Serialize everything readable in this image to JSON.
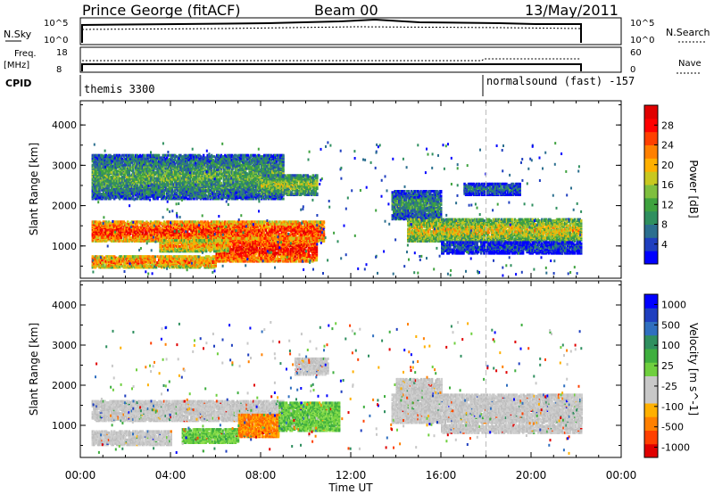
{
  "header": {
    "station": "Prince George (fitACF)",
    "beam": "Beam 00",
    "date": "13/May/2011"
  },
  "top_panels": {
    "nsky_label": "N.Sky",
    "nsky_ticks": [
      "10^5",
      "10^0"
    ],
    "nsearch_label": "N.Search",
    "nsearch_ticks": [
      "10^5",
      "10^0"
    ],
    "freq_label": "Freq.",
    "freq_unit": "[MHz]",
    "freq_ticks": [
      "18",
      "8"
    ],
    "nave_label": "Nave",
    "nave_ticks": [
      "60",
      "0"
    ],
    "cpid_label": "CPID",
    "cpid_modes": [
      {
        "name": "themis 3300",
        "start_hour": 0.0
      },
      {
        "name": "normalsound (fast) -157",
        "start_hour": 18.0
      }
    ]
  },
  "x_axis": {
    "label": "Time UT",
    "ticks": [
      "00:00",
      "04:00",
      "08:00",
      "12:00",
      "16:00",
      "20:00",
      "00:00"
    ],
    "range_hours": [
      0,
      24
    ]
  },
  "chart_data": [
    {
      "type": "heatmap",
      "panel": "power",
      "ylabel": "Slant Range [km]",
      "yticks": [
        "4000",
        "3000",
        "2000",
        "1000"
      ],
      "ylim": [
        200,
        4600
      ],
      "colorbar_label": "Power [dB]",
      "colorbar_ticks": [
        "28",
        "24",
        "20",
        "16",
        "12",
        "8",
        "4"
      ],
      "colorbar_colors": [
        "#0000ff",
        "#1f3fbf",
        "#2c6f8f",
        "#2f8f5f",
        "#3fa23f",
        "#7fbf3f",
        "#c8c820",
        "#ffb000",
        "#ff8000",
        "#ff4000",
        "#ff0000",
        "#e00000"
      ],
      "bands": [
        {
          "t0": 0.5,
          "t1": 10.8,
          "r0": 1150,
          "r1": 1650,
          "level": 0.85
        },
        {
          "t0": 0.5,
          "t1": 6.0,
          "r0": 500,
          "r1": 800,
          "level": 0.75
        },
        {
          "t0": 6.0,
          "t1": 10.5,
          "r0": 650,
          "r1": 1250,
          "level": 0.9
        },
        {
          "t0": 3.5,
          "t1": 6.5,
          "r0": 900,
          "r1": 1200,
          "level": 0.7
        },
        {
          "t0": 0.5,
          "t1": 9.0,
          "r0": 2200,
          "r1": 3300,
          "level": 0.4
        },
        {
          "t0": 8.0,
          "t1": 10.5,
          "r0": 2300,
          "r1": 2800,
          "level": 0.5
        },
        {
          "t0": 13.8,
          "t1": 16.0,
          "r0": 1700,
          "r1": 2400,
          "level": 0.35
        },
        {
          "t0": 14.5,
          "t1": 22.2,
          "r0": 1150,
          "r1": 1700,
          "level": 0.6
        },
        {
          "t0": 16.0,
          "t1": 22.2,
          "r0": 850,
          "r1": 1150,
          "level": 0.2
        },
        {
          "t0": 17.0,
          "t1": 19.5,
          "r0": 2300,
          "r1": 2600,
          "level": 0.25
        }
      ]
    },
    {
      "type": "heatmap",
      "panel": "velocity",
      "ylabel": "Slant Range [km]",
      "yticks": [
        "4000",
        "3000",
        "2000",
        "1000"
      ],
      "ylim": [
        200,
        4600
      ],
      "colorbar_label": "Velocity [m s^-1]",
      "colorbar_ticks": [
        "1000",
        "500",
        "100",
        "25",
        "-25",
        "-100",
        "-500",
        "-1000"
      ],
      "colorbar_colors": [
        "#e00000",
        "#ff4000",
        "#ff8000",
        "#ffb000",
        "#c8c8c8",
        "#c8c8c8",
        "#6fcf3f",
        "#3faf3f",
        "#2f8f5f",
        "#2f6fbf",
        "#1f3fbf",
        "#0000ff"
      ],
      "bands": [
        {
          "t0": 0.5,
          "t1": 9.0,
          "r0": 1150,
          "r1": 1650,
          "level": "gray"
        },
        {
          "t0": 0.5,
          "t1": 4.0,
          "r0": 550,
          "r1": 900,
          "level": "gray"
        },
        {
          "t0": 4.5,
          "t1": 7.0,
          "r0": 600,
          "r1": 950,
          "level": "green"
        },
        {
          "t0": 7.0,
          "t1": 8.8,
          "r0": 750,
          "r1": 1300,
          "level": "orange"
        },
        {
          "t0": 8.8,
          "t1": 11.5,
          "r0": 900,
          "r1": 1600,
          "level": "green"
        },
        {
          "t0": 9.5,
          "t1": 11.0,
          "r0": 2300,
          "r1": 2700,
          "level": "gray"
        },
        {
          "t0": 13.8,
          "t1": 22.2,
          "r0": 1100,
          "r1": 1800,
          "level": "gray"
        },
        {
          "t0": 14.0,
          "t1": 16.0,
          "r0": 1700,
          "r1": 2200,
          "level": "gray"
        },
        {
          "t0": 16.0,
          "t1": 22.2,
          "r0": 850,
          "r1": 1050,
          "level": "gray"
        }
      ]
    }
  ],
  "colors": {
    "axis": "#000000",
    "dashed_marker": "#bbbbbb"
  }
}
